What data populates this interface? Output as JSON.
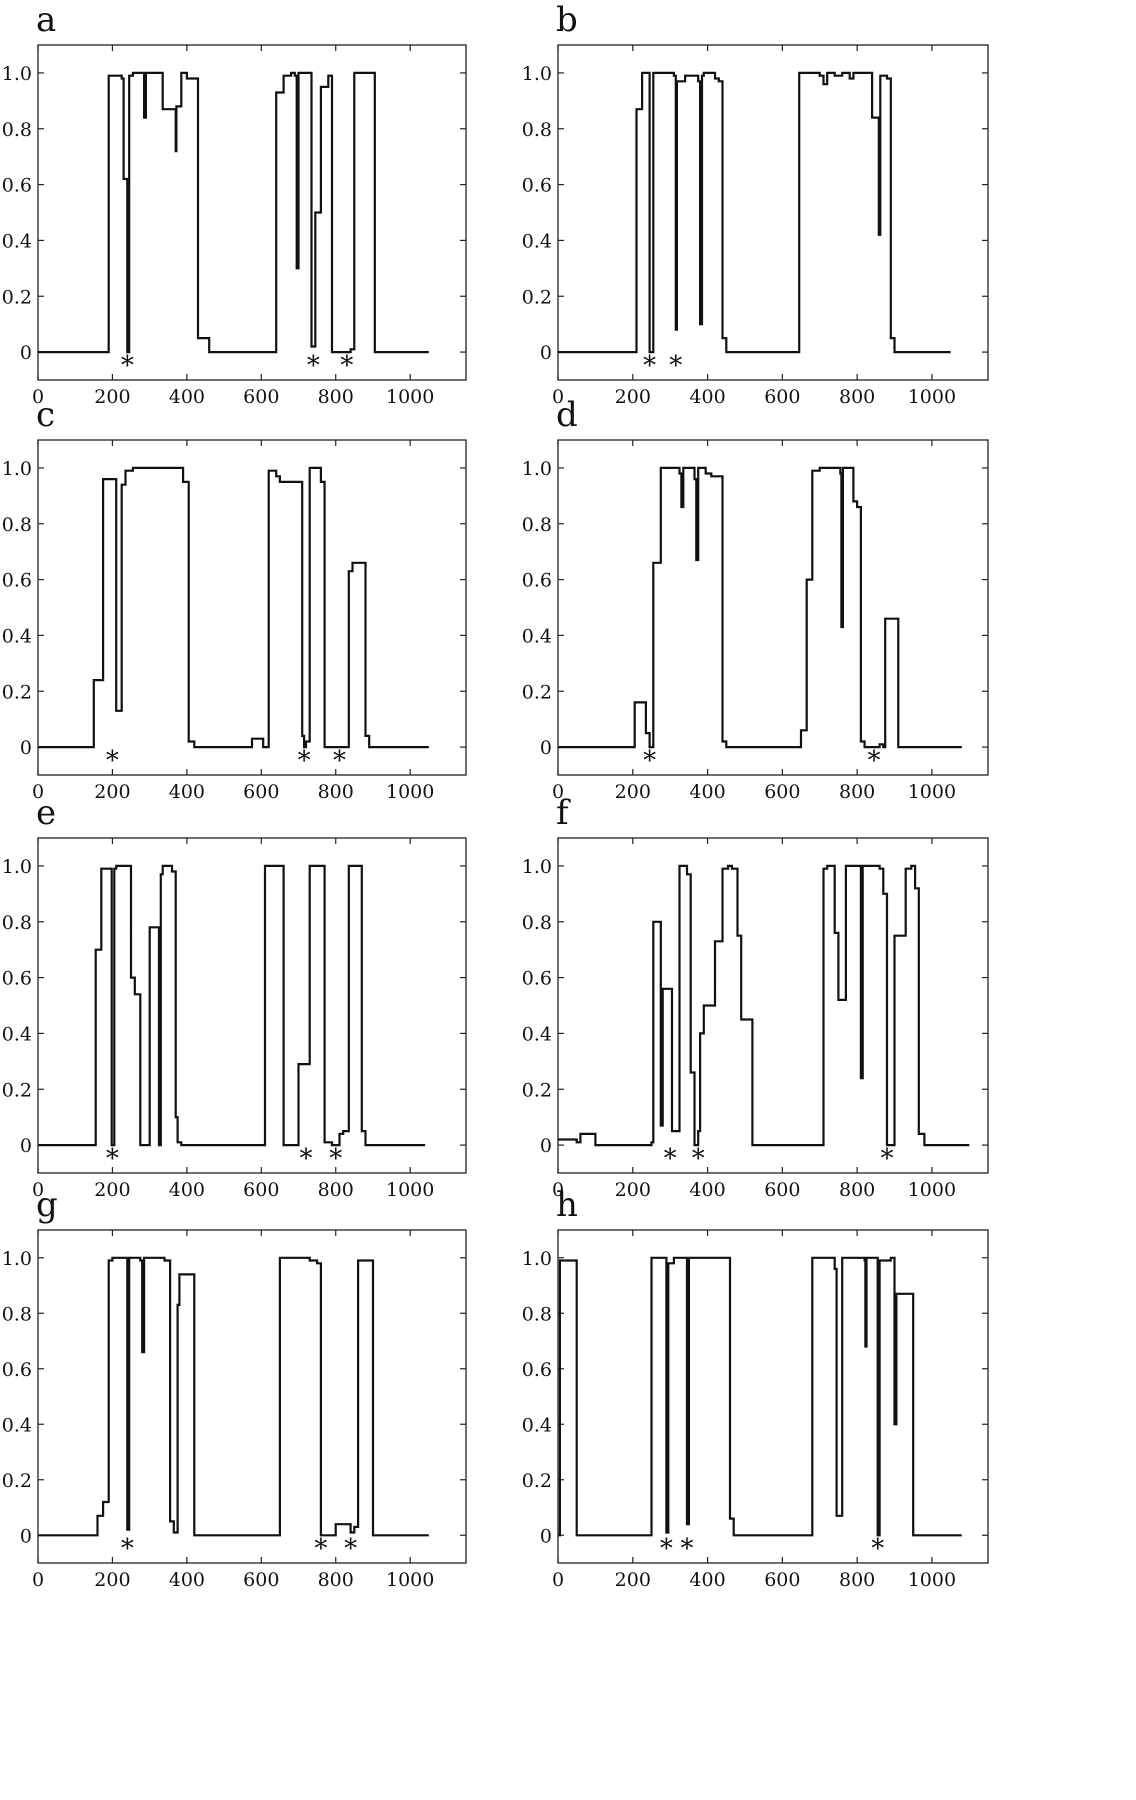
{
  "chart_data": [
    {
      "type": "line",
      "panel": "a",
      "xlim": [
        0,
        1150
      ],
      "ylim": [
        -0.1,
        1.1
      ],
      "xticks": [
        "0",
        "200",
        "400",
        "600",
        "800",
        "1000"
      ],
      "yticks": [
        "0",
        "0.2",
        "0.4",
        "0.6",
        "0.8",
        "1.0"
      ],
      "xtick_values": [
        0,
        200,
        400,
        600,
        800,
        1000
      ],
      "ytick_values": [
        0,
        0.2,
        0.4,
        0.6,
        0.8,
        1.0
      ],
      "stars": [
        240,
        740,
        830
      ],
      "series": [
        {
          "x": [
            0,
            185,
            190,
            200,
            225,
            230,
            240,
            245,
            255,
            280,
            285,
            290,
            295,
            300,
            330,
            335,
            365,
            370,
            372,
            380,
            385,
            395,
            400,
            420,
            430,
            440,
            460,
            470,
            630,
            640,
            660,
            680,
            690,
            695,
            700,
            720,
            735,
            745,
            760,
            780,
            790,
            810,
            825,
            840,
            850,
            860,
            870,
            895,
            905,
            1000,
            1050
          ],
          "y": [
            0,
            0,
            0.99,
            0.99,
            0.98,
            0.62,
            0.0,
            0.99,
            1.0,
            1.0,
            0.84,
            1.0,
            1.0,
            1.0,
            1.0,
            0.87,
            0.87,
            0.72,
            0.88,
            0.88,
            1.0,
            1.0,
            0.98,
            0.98,
            0.05,
            0.05,
            0.0,
            0.0,
            0.0,
            0.93,
            0.99,
            1.0,
            0.99,
            0.3,
            1.0,
            1.0,
            0.02,
            0.5,
            0.95,
            0.99,
            0.0,
            0.0,
            0.0,
            0.01,
            1.0,
            1.0,
            1.0,
            1.0,
            0.0,
            0.0,
            0.0
          ]
        }
      ]
    },
    {
      "type": "line",
      "panel": "b",
      "xlim": [
        0,
        1150
      ],
      "ylim": [
        -0.1,
        1.1
      ],
      "xticks": [
        "0",
        "200",
        "400",
        "600",
        "800",
        "1000"
      ],
      "yticks": [
        "0",
        "0.2",
        "0.4",
        "0.6",
        "0.8",
        "1.0"
      ],
      "xtick_values": [
        0,
        200,
        400,
        600,
        800,
        1000
      ],
      "ytick_values": [
        0,
        0.2,
        0.4,
        0.6,
        0.8,
        1.0
      ],
      "stars": [
        245,
        315
      ],
      "series": [
        {
          "x": [
            0,
            200,
            210,
            225,
            235,
            245,
            250,
            255,
            260,
            300,
            310,
            315,
            318,
            325,
            340,
            360,
            375,
            380,
            385,
            390,
            400,
            420,
            430,
            440,
            450,
            640,
            645,
            680,
            700,
            710,
            720,
            740,
            760,
            780,
            790,
            800,
            820,
            840,
            855,
            858,
            862,
            870,
            880,
            890,
            900,
            1050
          ],
          "y": [
            0,
            0,
            0.87,
            1.0,
            1.0,
            0.0,
            0.0,
            1.0,
            1.0,
            1.0,
            0.99,
            0.08,
            0.97,
            0.97,
            0.99,
            0.99,
            0.97,
            0.1,
            0.99,
            1.0,
            1.0,
            0.98,
            0.97,
            0.05,
            0.0,
            0.0,
            1.0,
            1.0,
            0.99,
            0.96,
            1.0,
            0.99,
            1.0,
            0.98,
            1.0,
            1.0,
            1.0,
            0.84,
            0.84,
            0.42,
            0.99,
            0.99,
            0.98,
            0.05,
            0.0,
            0.0
          ]
        }
      ]
    },
    {
      "type": "line",
      "panel": "c",
      "xlim": [
        0,
        1150
      ],
      "ylim": [
        -0.1,
        1.1
      ],
      "xticks": [
        "0",
        "200",
        "400",
        "600",
        "800",
        "1000"
      ],
      "yticks": [
        "0",
        "0.2",
        "0.4",
        "0.6",
        "0.8",
        "1.0"
      ],
      "xtick_values": [
        0,
        200,
        400,
        600,
        800,
        1000
      ],
      "ytick_values": [
        0,
        0.2,
        0.4,
        0.6,
        0.8,
        1.0
      ],
      "stars": [
        200,
        715,
        810
      ],
      "series": [
        {
          "x": [
            0,
            140,
            150,
            165,
            175,
            200,
            210,
            215,
            225,
            235,
            255,
            270,
            380,
            390,
            405,
            420,
            570,
            575,
            595,
            605,
            620,
            640,
            650,
            700,
            710,
            715,
            720,
            730,
            750,
            760,
            770,
            800,
            810,
            835,
            845,
            860,
            880,
            890,
            1050
          ],
          "y": [
            0,
            0,
            0.24,
            0.24,
            0.96,
            0.96,
            0.13,
            0.13,
            0.94,
            0.99,
            1.0,
            1.0,
            1.0,
            0.95,
            0.02,
            0.0,
            0.0,
            0.03,
            0.03,
            0.0,
            0.99,
            0.97,
            0.95,
            0.95,
            0.04,
            0.0,
            0.02,
            1.0,
            1.0,
            0.95,
            0.0,
            0.0,
            0.0,
            0.63,
            0.66,
            0.66,
            0.04,
            0.0,
            0.0
          ]
        }
      ]
    },
    {
      "type": "line",
      "panel": "d",
      "xlim": [
        0,
        1150
      ],
      "ylim": [
        -0.1,
        1.1
      ],
      "xticks": [
        "0",
        "200",
        "400",
        "600",
        "800",
        "1000"
      ],
      "yticks": [
        "0",
        "0.2",
        "0.4",
        "0.6",
        "0.8",
        "1.0"
      ],
      "xtick_values": [
        0,
        200,
        400,
        600,
        800,
        1000
      ],
      "ytick_values": [
        0,
        0.2,
        0.4,
        0.6,
        0.8,
        1.0
      ],
      "stars": [
        245,
        845
      ],
      "series": [
        {
          "x": [
            0,
            200,
            205,
            225,
            235,
            245,
            255,
            265,
            275,
            285,
            310,
            325,
            330,
            335,
            350,
            365,
            370,
            375,
            395,
            410,
            440,
            450,
            460,
            640,
            650,
            665,
            680,
            700,
            740,
            755,
            758,
            762,
            770,
            790,
            800,
            810,
            820,
            830,
            850,
            860,
            870,
            875,
            900,
            910,
            1080
          ],
          "y": [
            0,
            0,
            0.16,
            0.16,
            0.05,
            0.0,
            0.66,
            0.66,
            1.0,
            1.0,
            1.0,
            0.98,
            0.86,
            1.0,
            1.0,
            0.96,
            0.67,
            1.0,
            0.98,
            0.97,
            0.02,
            0.0,
            0.0,
            0.0,
            0.06,
            0.6,
            0.99,
            1.0,
            1.0,
            0.98,
            0.43,
            1.0,
            1.0,
            0.88,
            0.86,
            0.02,
            0.0,
            0.0,
            0.0,
            0.01,
            0.0,
            0.46,
            0.46,
            0.0,
            0.0
          ]
        }
      ]
    },
    {
      "type": "line",
      "panel": "e",
      "xlim": [
        0,
        1150
      ],
      "ylim": [
        -0.1,
        1.1
      ],
      "xticks": [
        "0",
        "200",
        "400",
        "600",
        "800",
        "1000"
      ],
      "yticks": [
        "0",
        "0.2",
        "0.4",
        "0.6",
        "0.8",
        "1.0"
      ],
      "xtick_values": [
        0,
        200,
        400,
        600,
        800,
        1000
      ],
      "ytick_values": [
        0,
        0.2,
        0.4,
        0.6,
        0.8,
        1.0
      ],
      "stars": [
        200,
        720,
        800
      ],
      "series": [
        {
          "x": [
            0,
            145,
            155,
            170,
            190,
            198,
            205,
            210,
            240,
            250,
            260,
            275,
            290,
            300,
            320,
            325,
            330,
            335,
            345,
            360,
            370,
            375,
            385,
            600,
            610,
            650,
            660,
            690,
            700,
            720,
            730,
            760,
            770,
            790,
            800,
            810,
            820,
            835,
            860,
            870,
            880,
            1040
          ],
          "y": [
            0,
            0,
            0.7,
            0.99,
            0.99,
            0.0,
            0.99,
            1.0,
            1.0,
            0.6,
            0.54,
            0.0,
            0.0,
            0.78,
            0.78,
            0.0,
            0.97,
            1.0,
            1.0,
            0.98,
            0.1,
            0.01,
            0.0,
            0.0,
            1.0,
            1.0,
            0.0,
            0.0,
            0.29,
            0.29,
            1.0,
            1.0,
            0.01,
            0.0,
            0.0,
            0.04,
            0.05,
            1.0,
            1.0,
            0.05,
            0.0,
            0.0
          ]
        }
      ]
    },
    {
      "type": "line",
      "panel": "f",
      "xlim": [
        0,
        1150
      ],
      "ylim": [
        -0.1,
        1.1
      ],
      "xticks": [
        "0",
        "200",
        "400",
        "600",
        "800",
        "1000"
      ],
      "yticks": [
        "0",
        "0.2",
        "0.4",
        "0.6",
        "0.8",
        "1.0"
      ],
      "xtick_values": [
        0,
        200,
        400,
        600,
        800,
        1000
      ],
      "ytick_values": [
        0,
        0.2,
        0.4,
        0.6,
        0.8,
        1.0
      ],
      "stars": [
        300,
        375,
        880
      ],
      "series": [
        {
          "x": [
            0,
            40,
            50,
            60,
            90,
            100,
            240,
            250,
            255,
            270,
            275,
            280,
            300,
            305,
            325,
            330,
            345,
            355,
            365,
            375,
            380,
            390,
            410,
            420,
            440,
            455,
            465,
            480,
            490,
            505,
            520,
            600,
            700,
            710,
            720,
            735,
            740,
            750,
            760,
            770,
            800,
            810,
            815,
            820,
            840,
            860,
            870,
            880,
            890,
            900,
            915,
            930,
            945,
            955,
            965,
            980,
            1100
          ],
          "y": [
            0.02,
            0.02,
            0.01,
            0.04,
            0.04,
            0.0,
            0.0,
            0.01,
            0.8,
            0.8,
            0.07,
            0.56,
            0.56,
            0.05,
            1.0,
            1.0,
            0.97,
            0.26,
            0.0,
            0.05,
            0.4,
            0.5,
            0.5,
            0.73,
            0.99,
            1.0,
            0.99,
            0.75,
            0.45,
            0.45,
            0.0,
            0.0,
            0.0,
            0.99,
            1.0,
            1.0,
            0.76,
            0.52,
            0.52,
            1.0,
            1.0,
            0.24,
            1.0,
            1.0,
            1.0,
            0.99,
            0.9,
            0.0,
            0.0,
            0.75,
            0.75,
            0.99,
            1.0,
            0.92,
            0.04,
            0.0,
            0.0
          ]
        }
      ]
    },
    {
      "type": "line",
      "panel": "g",
      "xlim": [
        0,
        1150
      ],
      "ylim": [
        -0.1,
        1.1
      ],
      "xticks": [
        "0",
        "200",
        "400",
        "600",
        "800",
        "1000"
      ],
      "yticks": [
        "0",
        "0.2",
        "0.4",
        "0.6",
        "0.8",
        "1.0"
      ],
      "xtick_values": [
        0,
        200,
        400,
        600,
        800,
        1000
      ],
      "ytick_values": [
        0,
        0.2,
        0.4,
        0.6,
        0.8,
        1.0
      ],
      "stars": [
        240,
        760,
        840
      ],
      "series": [
        {
          "x": [
            0,
            150,
            160,
            175,
            190,
            200,
            230,
            240,
            245,
            260,
            275,
            280,
            285,
            310,
            340,
            355,
            365,
            375,
            380,
            410,
            420,
            640,
            650,
            700,
            730,
            750,
            760,
            790,
            800,
            810,
            830,
            840,
            850,
            860,
            890,
            900,
            1050
          ],
          "y": [
            0,
            0,
            0.07,
            0.12,
            0.99,
            1.0,
            1.0,
            0.02,
            1.0,
            1.0,
            0.99,
            0.66,
            1.0,
            1.0,
            0.99,
            0.05,
            0.01,
            0.83,
            0.94,
            0.94,
            0.0,
            0.0,
            1.0,
            1.0,
            0.99,
            0.98,
            0.0,
            0.0,
            0.04,
            0.04,
            0.04,
            0.01,
            0.03,
            0.99,
            0.99,
            0.0,
            0.0
          ]
        }
      ]
    },
    {
      "type": "line",
      "panel": "h",
      "xlim": [
        0,
        1150
      ],
      "ylim": [
        -0.1,
        1.1
      ],
      "xticks": [
        "0",
        "200",
        "400",
        "600",
        "800",
        "1000"
      ],
      "yticks": [
        "0",
        "0.2",
        "0.4",
        "0.6",
        "0.8",
        "1.0"
      ],
      "xtick_values": [
        0,
        200,
        400,
        600,
        800,
        1000
      ],
      "ytick_values": [
        0,
        0.2,
        0.4,
        0.6,
        0.8,
        1.0
      ],
      "stars": [
        290,
        345,
        855
      ],
      "series": [
        {
          "x": [
            0,
            5,
            10,
            40,
            50,
            240,
            250,
            280,
            290,
            295,
            310,
            330,
            345,
            350,
            360,
            380,
            440,
            460,
            470,
            490,
            670,
            680,
            720,
            740,
            745,
            760,
            800,
            820,
            822,
            825,
            850,
            855,
            860,
            870,
            890,
            900,
            905,
            940,
            950,
            1080
          ],
          "y": [
            0,
            0.99,
            0.99,
            0.99,
            0.0,
            0.0,
            1.0,
            1.0,
            0.01,
            0.98,
            1.0,
            1.0,
            0.04,
            1.0,
            1.0,
            1.0,
            1.0,
            0.06,
            0.0,
            0.0,
            0.0,
            1.0,
            1.0,
            0.96,
            0.07,
            1.0,
            1.0,
            0.99,
            0.68,
            1.0,
            1.0,
            0.0,
            0.99,
            0.99,
            1.0,
            0.4,
            0.87,
            0.87,
            0.0,
            0.0
          ]
        }
      ]
    }
  ]
}
